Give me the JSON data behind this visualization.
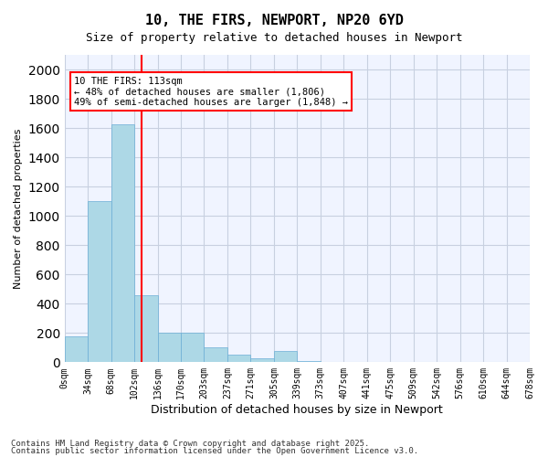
{
  "title1": "10, THE FIRS, NEWPORT, NP20 6YD",
  "title2": "Size of property relative to detached houses in Newport",
  "xlabel": "Distribution of detached houses by size in Newport",
  "ylabel": "Number of detached properties",
  "bins": [
    "0sqm",
    "34sqm",
    "68sqm",
    "102sqm",
    "136sqm",
    "170sqm",
    "203sqm",
    "237sqm",
    "271sqm",
    "305sqm",
    "339sqm",
    "373sqm",
    "407sqm",
    "441sqm",
    "475sqm",
    "509sqm",
    "542sqm",
    "576sqm",
    "610sqm",
    "644sqm",
    "678sqm"
  ],
  "bar_values": [
    175,
    1100,
    1625,
    460,
    200,
    200,
    100,
    55,
    30,
    80,
    10,
    5,
    3,
    2,
    1,
    1,
    0,
    0,
    0,
    0
  ],
  "bar_color": "#add8e6",
  "bar_edge_color": "#6baed6",
  "vline_x": 3.33,
  "vline_color": "red",
  "ylim": [
    0,
    2100
  ],
  "yticks": [
    0,
    200,
    400,
    600,
    800,
    1000,
    1200,
    1400,
    1600,
    1800,
    2000
  ],
  "annotation_text": "10 THE FIRS: 113sqm\n← 48% of detached houses are smaller (1,806)\n49% of semi-detached houses are larger (1,848) →",
  "annotation_box_color": "#ffffff",
  "annotation_border_color": "red",
  "footer1": "Contains HM Land Registry data © Crown copyright and database right 2025.",
  "footer2": "Contains public sector information licensed under the Open Government Licence v3.0.",
  "background_color": "#f0f4ff",
  "grid_color": "#c8d0e0"
}
